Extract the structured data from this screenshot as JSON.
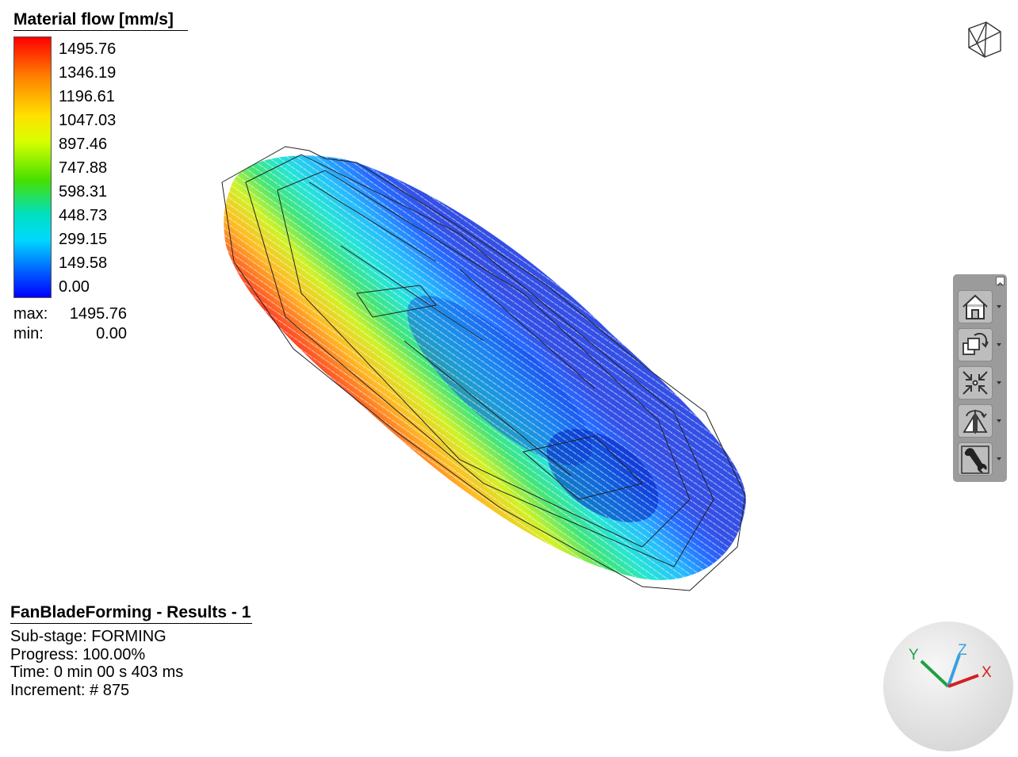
{
  "legend": {
    "title": "Material flow [mm/s]",
    "labels": [
      "1495.76",
      "1346.19",
      "1196.61",
      "1047.03",
      "897.46",
      "747.88",
      "598.31",
      "448.73",
      "299.15",
      "149.58",
      "0.00"
    ],
    "max_label": "max:",
    "max_value": "1495.76",
    "min_label": "min:",
    "min_value": "0.00"
  },
  "info": {
    "title": "FanBladeForming - Results - 1",
    "substage": "Sub-stage: FORMING",
    "progress": "Progress: 100.00%",
    "time": "Time: 0 min 00 s 403 ms",
    "increment": "Increment: # 875"
  },
  "toolbar": {
    "items": [
      {
        "icon": "home-view-icon"
      },
      {
        "icon": "rotate-view-icon"
      },
      {
        "icon": "fit-to-view-icon"
      },
      {
        "icon": "symmetry-view-icon"
      },
      {
        "icon": "wrench-settings-icon"
      }
    ]
  },
  "triad": {
    "x_label": "X",
    "y_label": "Y",
    "z_label": "Z",
    "x_color": "#d42020",
    "y_color": "#20a040",
    "z_color": "#3aa0e0"
  }
}
